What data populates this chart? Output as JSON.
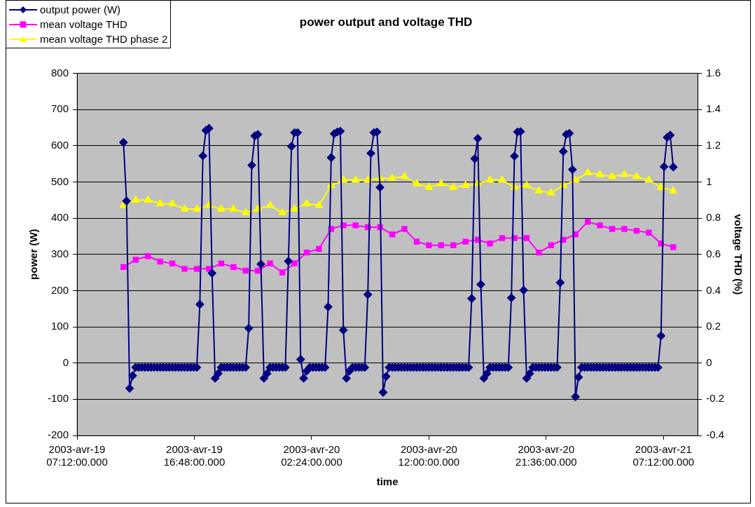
{
  "chart_data": {
    "type": "line",
    "title": "power output and voltage THD",
    "xlabel": "time",
    "ylabel": "power (W)",
    "y2label": "voltage THD (%)",
    "xlim": [
      "2003-04-19T07:12",
      "2003-04-21T10:00"
    ],
    "xticks": [
      {
        "value": "2003-04-19T07:12",
        "label": "2003-avr-19 07:12:00.000"
      },
      {
        "value": "2003-04-19T16:48",
        "label": "2003-avr-19 16:48:00.000"
      },
      {
        "value": "2003-04-20T02:24",
        "label": "2003-avr-20 02:24:00.000"
      },
      {
        "value": "2003-04-20T12:00",
        "label": "2003-avr-20 12:00:00.000"
      },
      {
        "value": "2003-04-20T21:36",
        "label": "2003-avr-20 21:36:00.000"
      },
      {
        "value": "2003-04-21T07:12",
        "label": "2003-avr-21 07:12:00.000"
      }
    ],
    "ylim": [
      -200,
      800
    ],
    "yticks": [
      -200,
      -100,
      0,
      100,
      200,
      300,
      400,
      500,
      600,
      700,
      800
    ],
    "y2lim": [
      -0.4,
      1.6
    ],
    "y2ticks": [
      -0.4,
      -0.2,
      0,
      0.2,
      0.4,
      0.6,
      0.8,
      1,
      1.2,
      1.4,
      1.6
    ],
    "grid": "y",
    "legend": "top left",
    "line_style": "solid",
    "series": [
      {
        "name": "output power (W)",
        "color": "#000080",
        "marker": "diamond",
        "x": [
          "2003-04-19T11:00",
          "2003-04-19T11:15",
          "2003-04-19T11:30",
          "2003-04-19T11:45",
          "2003-04-19T12:00",
          "2003-04-19T12:15",
          "2003-04-19T12:30",
          "2003-04-19T12:45",
          "2003-04-19T13:00",
          "2003-04-19T13:15",
          "2003-04-19T13:30",
          "2003-04-19T13:45",
          "2003-04-19T14:00",
          "2003-04-19T14:15",
          "2003-04-19T14:30",
          "2003-04-19T14:45",
          "2003-04-19T15:00",
          "2003-04-19T15:15",
          "2003-04-19T15:30",
          "2003-04-19T15:45",
          "2003-04-19T16:00",
          "2003-04-19T16:15",
          "2003-04-19T16:30",
          "2003-04-19T16:45",
          "2003-04-19T17:00",
          "2003-04-19T17:15",
          "2003-04-19T17:30",
          "2003-04-19T17:45",
          "2003-04-19T18:00",
          "2003-04-19T18:15",
          "2003-04-19T18:30",
          "2003-04-19T18:45",
          "2003-04-19T19:00",
          "2003-04-19T19:15",
          "2003-04-19T19:30",
          "2003-04-19T19:45",
          "2003-04-19T20:00",
          "2003-04-19T20:15",
          "2003-04-19T20:30",
          "2003-04-19T20:45",
          "2003-04-19T21:00",
          "2003-04-19T21:15",
          "2003-04-19T21:30",
          "2003-04-19T21:45",
          "2003-04-19T22:00",
          "2003-04-19T22:15",
          "2003-04-19T22:30",
          "2003-04-19T22:45",
          "2003-04-19T23:00",
          "2003-04-19T23:15",
          "2003-04-19T23:30",
          "2003-04-19T23:45",
          "2003-04-20T00:00",
          "2003-04-20T00:15",
          "2003-04-20T00:30",
          "2003-04-20T00:45",
          "2003-04-20T01:00",
          "2003-04-20T01:15",
          "2003-04-20T01:30",
          "2003-04-20T01:45",
          "2003-04-20T02:00",
          "2003-04-20T02:15",
          "2003-04-20T02:30",
          "2003-04-20T02:45",
          "2003-04-20T03:00",
          "2003-04-20T03:15",
          "2003-04-20T03:30",
          "2003-04-20T03:45",
          "2003-04-20T04:00",
          "2003-04-20T04:15",
          "2003-04-20T04:30",
          "2003-04-20T04:45",
          "2003-04-20T05:00",
          "2003-04-20T05:15",
          "2003-04-20T05:30",
          "2003-04-20T05:45",
          "2003-04-20T06:00",
          "2003-04-20T06:15",
          "2003-04-20T06:30",
          "2003-04-20T06:45",
          "2003-04-20T07:00",
          "2003-04-20T07:15",
          "2003-04-20T07:30",
          "2003-04-20T07:45",
          "2003-04-20T08:00",
          "2003-04-20T08:15",
          "2003-04-20T08:30",
          "2003-04-20T08:45",
          "2003-04-20T09:00",
          "2003-04-20T09:15",
          "2003-04-20T09:30",
          "2003-04-20T09:45",
          "2003-04-20T10:00",
          "2003-04-20T10:15",
          "2003-04-20T10:30",
          "2003-04-20T10:45",
          "2003-04-20T11:00",
          "2003-04-20T11:15",
          "2003-04-20T11:30",
          "2003-04-20T11:45",
          "2003-04-20T12:00",
          "2003-04-20T12:15",
          "2003-04-20T12:30",
          "2003-04-20T12:45",
          "2003-04-20T13:00",
          "2003-04-20T13:15",
          "2003-04-20T13:30",
          "2003-04-20T13:45",
          "2003-04-20T14:00",
          "2003-04-20T14:15",
          "2003-04-20T14:30",
          "2003-04-20T14:45",
          "2003-04-20T15:00",
          "2003-04-20T15:15",
          "2003-04-20T15:30",
          "2003-04-20T15:45",
          "2003-04-20T16:00",
          "2003-04-20T16:15",
          "2003-04-20T16:30",
          "2003-04-20T16:45",
          "2003-04-20T17:00",
          "2003-04-20T17:15",
          "2003-04-20T17:30",
          "2003-04-20T17:45",
          "2003-04-20T18:00",
          "2003-04-20T18:15",
          "2003-04-20T18:30",
          "2003-04-20T18:45",
          "2003-04-20T19:00",
          "2003-04-20T19:15",
          "2003-04-20T19:30",
          "2003-04-20T19:45",
          "2003-04-20T20:00",
          "2003-04-20T20:15",
          "2003-04-20T20:30",
          "2003-04-20T20:45",
          "2003-04-20T21:00",
          "2003-04-20T21:15",
          "2003-04-20T21:30",
          "2003-04-20T21:45",
          "2003-04-20T22:00",
          "2003-04-20T22:15",
          "2003-04-20T22:30",
          "2003-04-20T22:45",
          "2003-04-20T23:00",
          "2003-04-20T23:15",
          "2003-04-20T23:30",
          "2003-04-20T23:45",
          "2003-04-21T00:00",
          "2003-04-21T00:15",
          "2003-04-21T00:30",
          "2003-04-21T00:45",
          "2003-04-21T01:00",
          "2003-04-21T01:15",
          "2003-04-21T01:30",
          "2003-04-21T01:45",
          "2003-04-21T02:00",
          "2003-04-21T02:15",
          "2003-04-21T02:30",
          "2003-04-21T02:45",
          "2003-04-21T03:00",
          "2003-04-21T03:15",
          "2003-04-21T03:30",
          "2003-04-21T03:45",
          "2003-04-21T04:00",
          "2003-04-21T04:15",
          "2003-04-21T04:30",
          "2003-04-21T04:45",
          "2003-04-21T05:00",
          "2003-04-21T05:15",
          "2003-04-21T05:30",
          "2003-04-21T05:45",
          "2003-04-21T06:00",
          "2003-04-21T06:15",
          "2003-04-21T06:30",
          "2003-04-21T06:45",
          "2003-04-21T07:00",
          "2003-04-21T07:15",
          "2003-04-21T07:30",
          "2003-04-21T07:45",
          "2003-04-21T08:00"
        ],
        "values": [
          609,
          447,
          -70,
          -35,
          -12,
          -12,
          -12,
          -12,
          -12,
          -12,
          -12,
          -12,
          -12,
          -12,
          -12,
          -12,
          -12,
          -12,
          -12,
          -12,
          -12,
          -12,
          -12,
          -12,
          -12,
          162,
          572,
          642,
          648,
          248,
          -42,
          -29,
          -12,
          -12,
          -12,
          -12,
          -12,
          -12,
          -12,
          -12,
          -12,
          96,
          546,
          627,
          631,
          273,
          -42,
          -29,
          -12,
          -12,
          -12,
          -12,
          -12,
          -12,
          281,
          598,
          636,
          636,
          10,
          -42,
          -22,
          -12,
          -12,
          -12,
          -12,
          -12,
          -12,
          155,
          567,
          633,
          638,
          640,
          91,
          -42,
          -22,
          -12,
          -12,
          -12,
          -12,
          -12,
          189,
          579,
          636,
          638,
          485,
          -81,
          -37,
          -12,
          -12,
          -12,
          -12,
          -12,
          -12,
          -12,
          -12,
          -12,
          -12,
          -12,
          -12,
          -12,
          -12,
          -12,
          -12,
          -12,
          -12,
          -12,
          -12,
          -12,
          -12,
          -12,
          -12,
          -12,
          -12,
          -12,
          178,
          564,
          620,
          217,
          -42,
          -29,
          -12,
          -12,
          -12,
          -12,
          -12,
          -12,
          -12,
          180,
          571,
          638,
          639,
          201,
          -42,
          -29,
          -12,
          -12,
          -12,
          -12,
          -12,
          -12,
          -12,
          -12,
          -12,
          222,
          584,
          631,
          634,
          534,
          -93,
          -39,
          -12,
          -12,
          -12,
          -12,
          -12,
          -12,
          -12,
          -12,
          -12,
          -12,
          -12,
          -12,
          -12,
          -12,
          -12,
          -12,
          -12,
          -12,
          -12,
          -12,
          -12,
          -12,
          -12,
          -12,
          -12,
          -12,
          75,
          542,
          623,
          629,
          541
        ]
      },
      {
        "name": "mean voltage THD",
        "color": "#ff00ff",
        "marker": "square",
        "axis": "y2",
        "x": [
          "2003-04-19T11:00",
          "2003-04-19T12:00",
          "2003-04-19T13:00",
          "2003-04-19T14:00",
          "2003-04-19T15:00",
          "2003-04-19T16:00",
          "2003-04-19T17:00",
          "2003-04-19T18:00",
          "2003-04-19T19:00",
          "2003-04-19T20:00",
          "2003-04-19T21:00",
          "2003-04-19T22:00",
          "2003-04-19T23:00",
          "2003-04-20T00:00",
          "2003-04-20T01:00",
          "2003-04-20T02:00",
          "2003-04-20T03:00",
          "2003-04-20T04:00",
          "2003-04-20T05:00",
          "2003-04-20T06:00",
          "2003-04-20T07:00",
          "2003-04-20T08:00",
          "2003-04-20T09:00",
          "2003-04-20T10:00",
          "2003-04-20T11:00",
          "2003-04-20T12:00",
          "2003-04-20T13:00",
          "2003-04-20T14:00",
          "2003-04-20T15:00",
          "2003-04-20T16:00",
          "2003-04-20T17:00",
          "2003-04-20T18:00",
          "2003-04-20T19:00",
          "2003-04-20T20:00",
          "2003-04-20T21:00",
          "2003-04-20T22:00",
          "2003-04-20T23:00",
          "2003-04-21T00:00",
          "2003-04-21T01:00",
          "2003-04-21T02:00",
          "2003-04-21T03:00",
          "2003-04-21T04:00",
          "2003-04-21T05:00",
          "2003-04-21T06:00",
          "2003-04-21T07:00",
          "2003-04-21T08:00"
        ],
        "values": [
          0.53,
          0.57,
          0.59,
          0.56,
          0.55,
          0.52,
          0.52,
          0.52,
          0.55,
          0.53,
          0.51,
          0.51,
          0.55,
          0.5,
          0.55,
          0.61,
          0.63,
          0.74,
          0.76,
          0.76,
          0.75,
          0.75,
          0.71,
          0.74,
          0.67,
          0.65,
          0.65,
          0.65,
          0.67,
          0.68,
          0.66,
          0.69,
          0.69,
          0.69,
          0.61,
          0.65,
          0.68,
          0.71,
          0.78,
          0.76,
          0.74,
          0.74,
          0.73,
          0.72,
          0.66,
          0.64
        ]
      },
      {
        "name": "mean voltage THD phase 2",
        "color": "#ffff00",
        "marker": "triangle",
        "axis": "y2",
        "x": [
          "2003-04-19T11:00",
          "2003-04-19T12:00",
          "2003-04-19T13:00",
          "2003-04-19T14:00",
          "2003-04-19T15:00",
          "2003-04-19T16:00",
          "2003-04-19T17:00",
          "2003-04-19T18:00",
          "2003-04-19T19:00",
          "2003-04-19T20:00",
          "2003-04-19T21:00",
          "2003-04-19T22:00",
          "2003-04-19T23:00",
          "2003-04-20T00:00",
          "2003-04-20T01:00",
          "2003-04-20T02:00",
          "2003-04-20T03:00",
          "2003-04-20T04:00",
          "2003-04-20T05:00",
          "2003-04-20T06:00",
          "2003-04-20T07:00",
          "2003-04-20T08:00",
          "2003-04-20T09:00",
          "2003-04-20T10:00",
          "2003-04-20T11:00",
          "2003-04-20T12:00",
          "2003-04-20T13:00",
          "2003-04-20T14:00",
          "2003-04-20T15:00",
          "2003-04-20T16:00",
          "2003-04-20T17:00",
          "2003-04-20T18:00",
          "2003-04-20T19:00",
          "2003-04-20T20:00",
          "2003-04-20T21:00",
          "2003-04-20T22:00",
          "2003-04-20T23:00",
          "2003-04-21T00:00",
          "2003-04-21T01:00",
          "2003-04-21T02:00",
          "2003-04-21T03:00",
          "2003-04-21T04:00",
          "2003-04-21T05:00",
          "2003-04-21T06:00",
          "2003-04-21T07:00",
          "2003-04-21T08:00"
        ],
        "values": [
          0.87,
          0.9,
          0.9,
          0.88,
          0.88,
          0.85,
          0.85,
          0.87,
          0.85,
          0.85,
          0.83,
          0.85,
          0.87,
          0.83,
          0.85,
          0.88,
          0.87,
          0.98,
          1.01,
          1.01,
          1.01,
          1.02,
          1.02,
          1.03,
          0.99,
          0.97,
          0.99,
          0.97,
          0.98,
          0.99,
          1.01,
          1.01,
          0.97,
          0.98,
          0.95,
          0.94,
          0.98,
          1.01,
          1.05,
          1.04,
          1.03,
          1.04,
          1.03,
          1.01,
          0.97,
          0.95
        ]
      }
    ]
  }
}
